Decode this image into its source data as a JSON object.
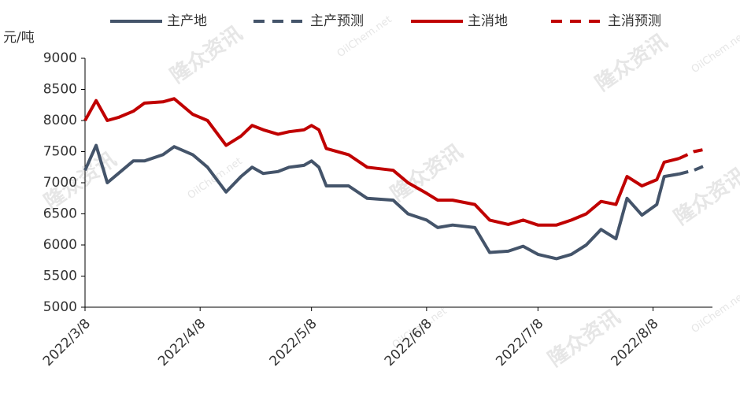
{
  "chart_data": {
    "type": "line",
    "y_label": "元/吨",
    "watermarks": [
      "隆众资讯",
      "OilChem.net"
    ],
    "x": [
      "2022/3/8",
      "2022/3/11",
      "2022/3/14",
      "2022/3/17",
      "2022/3/21",
      "2022/3/24",
      "2022/3/29",
      "2022/4/1",
      "2022/4/6",
      "2022/4/10",
      "2022/4/15",
      "2022/4/19",
      "2022/4/22",
      "2022/4/25",
      "2022/4/29",
      "2022/5/2",
      "2022/5/6",
      "2022/5/8",
      "2022/5/10",
      "2022/5/12",
      "2022/5/18",
      "2022/5/23",
      "2022/5/30",
      "2022/6/3",
      "2022/6/8",
      "2022/6/11",
      "2022/6/15",
      "2022/6/21",
      "2022/6/25",
      "2022/6/30",
      "2022/7/4",
      "2022/7/8",
      "2022/7/13",
      "2022/7/17",
      "2022/7/21",
      "2022/7/25",
      "2022/7/29",
      "2022/8/1",
      "2022/8/5",
      "2022/8/9",
      "2022/8/11",
      "2022/8/15",
      "2022/8/19",
      "2022/8/23"
    ],
    "series": [
      {
        "name": "主产地",
        "color": "#44546a",
        "dash": false,
        "values": [
          7200,
          7600,
          7000,
          7150,
          7350,
          7350,
          7450,
          7580,
          7450,
          7250,
          6850,
          7100,
          7250,
          7150,
          7180,
          7250,
          7280,
          7350,
          7250,
          6950,
          6950,
          6750,
          6720,
          6500,
          6400,
          6280,
          6320,
          6280,
          5880,
          5900,
          5980,
          5850,
          5780,
          5850,
          6000,
          6250,
          6100,
          6750,
          6480,
          6650,
          7100,
          7140,
          null,
          null
        ]
      },
      {
        "name": "主产预测",
        "color": "#44546a",
        "dash": true,
        "values": [
          null,
          null,
          null,
          null,
          null,
          null,
          null,
          null,
          null,
          null,
          null,
          null,
          null,
          null,
          null,
          null,
          null,
          null,
          null,
          null,
          null,
          null,
          null,
          null,
          null,
          null,
          null,
          null,
          null,
          null,
          null,
          null,
          null,
          null,
          null,
          null,
          null,
          null,
          null,
          null,
          null,
          7140,
          7200,
          7300
        ]
      },
      {
        "name": "主消地",
        "color": "#c00000",
        "dash": false,
        "values": [
          8000,
          8320,
          8000,
          8050,
          8150,
          8280,
          8300,
          8350,
          8100,
          8000,
          7600,
          7750,
          7920,
          7850,
          7780,
          7820,
          7850,
          7920,
          7850,
          7550,
          7450,
          7250,
          7200,
          7000,
          6830,
          6720,
          6720,
          6650,
          6400,
          6330,
          6400,
          6320,
          6320,
          6400,
          6500,
          6700,
          6650,
          7100,
          6950,
          7050,
          7330,
          7390,
          null,
          null
        ]
      },
      {
        "name": "主消预测",
        "color": "#c00000",
        "dash": true,
        "values": [
          null,
          null,
          null,
          null,
          null,
          null,
          null,
          null,
          null,
          null,
          null,
          null,
          null,
          null,
          null,
          null,
          null,
          null,
          null,
          null,
          null,
          null,
          null,
          null,
          null,
          null,
          null,
          null,
          null,
          null,
          null,
          null,
          null,
          null,
          null,
          null,
          null,
          null,
          null,
          null,
          null,
          7390,
          7500,
          7550
        ]
      }
    ],
    "xlim": [
      "2022/3/8",
      "2022/8/24"
    ],
    "xticks": [
      "2022/3/8",
      "2022/4/8",
      "2022/5/8",
      "2022/6/8",
      "2022/7/8",
      "2022/8/8"
    ],
    "ylim": [
      5000,
      9000
    ],
    "yticks": [
      5000,
      5500,
      6000,
      6500,
      7000,
      7500,
      8000,
      8500,
      9000
    ],
    "legend": "top"
  }
}
